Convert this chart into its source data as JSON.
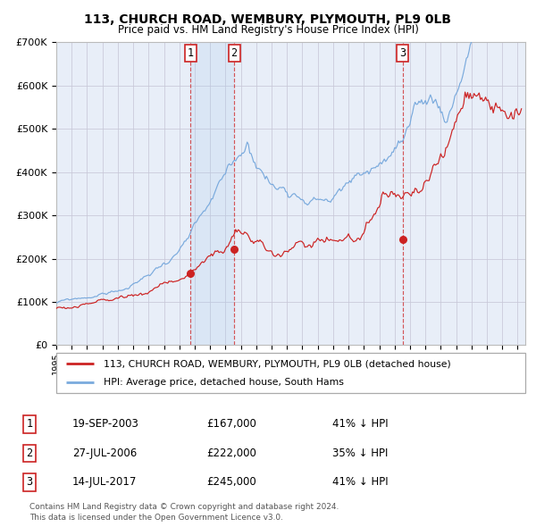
{
  "title": "113, CHURCH ROAD, WEMBURY, PLYMOUTH, PL9 0LB",
  "subtitle": "Price paid vs. HM Land Registry's House Price Index (HPI)",
  "ylim": [
    0,
    700000
  ],
  "yticks": [
    0,
    100000,
    200000,
    300000,
    400000,
    500000,
    600000,
    700000
  ],
  "ytick_labels": [
    "£0",
    "£100K",
    "£200K",
    "£300K",
    "£400K",
    "£500K",
    "£600K",
    "£700K"
  ],
  "hpi_color": "#7aaadd",
  "price_color": "#cc2222",
  "bg_color": "#e8eef8",
  "grid_color": "#c8c8d8",
  "sale_dates_str": [
    "2003-09-19",
    "2006-07-27",
    "2017-07-14"
  ],
  "sale_prices": [
    167000,
    222000,
    245000
  ],
  "sale_labels": [
    "1",
    "2",
    "3"
  ],
  "legend_line1": "113, CHURCH ROAD, WEMBURY, PLYMOUTH, PL9 0LB (detached house)",
  "legend_line2": "HPI: Average price, detached house, South Hams",
  "table_rows": [
    [
      "1",
      "19-SEP-2003",
      "£167,000",
      "41% ↓ HPI"
    ],
    [
      "2",
      "27-JUL-2006",
      "£222,000",
      "35% ↓ HPI"
    ],
    [
      "3",
      "14-JUL-2017",
      "£245,000",
      "41% ↓ HPI"
    ]
  ],
  "footnote_line1": "Contains HM Land Registry data © Crown copyright and database right 2024.",
  "footnote_line2": "This data is licensed under the Open Government Licence v3.0."
}
